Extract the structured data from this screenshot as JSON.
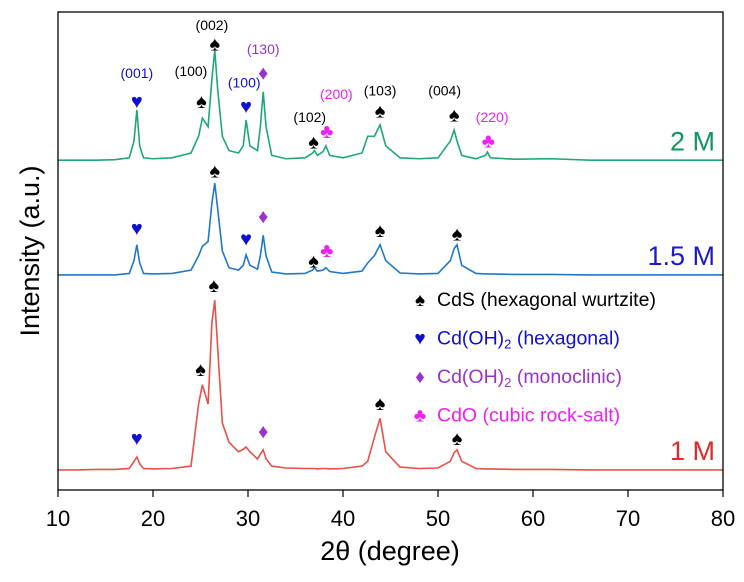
{
  "chart_data": {
    "type": "line",
    "xlabel": "2θ (degree)",
    "ylabel": "Intensity (a.u.)",
    "xlim": [
      10,
      80
    ],
    "xticks": [
      10,
      20,
      30,
      40,
      50,
      60,
      70,
      80
    ],
    "ylim": [
      0,
      100
    ],
    "x": [
      10,
      12,
      14,
      16,
      17.5,
      18,
      18.3,
      18.6,
      19,
      20,
      22,
      24,
      24.8,
      25.2,
      25.8,
      26.2,
      26.5,
      26.8,
      27.3,
      28,
      29,
      29.5,
      29.8,
      30.2,
      31,
      31.3,
      31.6,
      31.9,
      32.5,
      34,
      36,
      36.8,
      37,
      37.3,
      37.9,
      38.2,
      38.6,
      40,
      42,
      42.6,
      43.3,
      43.9,
      44.5,
      46,
      48,
      50,
      51.3,
      51.7,
      52,
      52.5,
      54,
      55,
      55.2,
      55.5,
      58,
      62,
      66,
      70,
      75,
      80
    ],
    "series": [
      {
        "name": "2 M",
        "color": "#1fa774",
        "label_color": "#13955f",
        "values": [
          69,
          69,
          69,
          69.1,
          69.5,
          73,
          79.5,
          72,
          69.5,
          69.3,
          69.5,
          70.5,
          74,
          77.8,
          76,
          86,
          92,
          84,
          74,
          71,
          70.5,
          72,
          77.4,
          72,
          71,
          76,
          83.3,
          76,
          70,
          69.3,
          69.5,
          70.5,
          71,
          70,
          70.8,
          72,
          70,
          69.5,
          70.5,
          74,
          74,
          76.4,
          72,
          69.5,
          69.3,
          69.5,
          73,
          75.3,
          73,
          70,
          69.3,
          70,
          70.7,
          69.5,
          69.2,
          69.3,
          69,
          69,
          69,
          69
        ]
      },
      {
        "name": "1.5 M",
        "color": "#1f78c8",
        "label_color": "#1a1acc",
        "values": [
          45,
          45,
          45,
          45,
          45.3,
          48,
          51.3,
          47.5,
          45.3,
          45.2,
          45.3,
          46,
          49,
          51,
          52,
          60,
          64.2,
          59,
          50,
          46.5,
          46,
          47,
          49.2,
          47,
          46.2,
          49,
          53.3,
          49,
          45.6,
          45.2,
          45.3,
          46,
          46.5,
          45.8,
          46,
          46.5,
          45.7,
          45.3,
          45.8,
          47.5,
          49,
          51.3,
          48,
          45.4,
          45.2,
          45.3,
          48,
          50.5,
          51.3,
          47,
          45.3,
          45.2,
          45.2,
          45.2,
          45.1,
          45.1,
          45,
          45,
          45,
          45
        ]
      },
      {
        "name": "1 M",
        "color": "#e8504a",
        "label_color": "#e02828",
        "values": [
          4.2,
          4.2,
          4.3,
          4.3,
          4.5,
          6,
          6.9,
          5.5,
          4.5,
          4.4,
          4.5,
          5,
          18,
          22,
          18,
          35,
          39.7,
          30,
          14,
          10,
          8,
          8.5,
          9,
          8,
          6.5,
          7.5,
          8.4,
          6.5,
          5,
          4.6,
          4.5,
          4.5,
          4.5,
          4.4,
          4.5,
          4.5,
          4.4,
          4.5,
          5,
          6,
          11,
          15,
          8,
          4.8,
          4.5,
          4.6,
          6,
          7.8,
          8.4,
          6,
          4.5,
          4.4,
          4.4,
          4.4,
          4.3,
          4.3,
          4.2,
          4.2,
          4.2,
          4.2
        ]
      }
    ],
    "annotations": [
      {
        "text": "♥",
        "x": 18.3,
        "y": 81,
        "color": "#1010d0"
      },
      {
        "text": "(001)",
        "x": 18.3,
        "y": 87,
        "color": "#1010d0"
      },
      {
        "text": "♠",
        "x": 25.1,
        "y": 81,
        "color": "#000000"
      },
      {
        "text": "(100)",
        "x": 24.0,
        "y": 87.4,
        "color": "#000000"
      },
      {
        "text": "♠",
        "x": 26.5,
        "y": 93,
        "color": "#000000"
      },
      {
        "text": "(002)",
        "x": 26.2,
        "y": 97,
        "color": "#000000"
      },
      {
        "text": "♥",
        "x": 29.8,
        "y": 80,
        "color": "#1010d0"
      },
      {
        "text": "(100)",
        "x": 29.6,
        "y": 85,
        "color": "#1010d0"
      },
      {
        "text": "♦",
        "x": 31.6,
        "y": 87,
        "color": "#9933cc"
      },
      {
        "text": "(130)",
        "x": 31.6,
        "y": 92,
        "color": "#9933cc"
      },
      {
        "text": "♠",
        "x": 36.9,
        "y": 72.6,
        "color": "#000000"
      },
      {
        "text": "(102)",
        "x": 36.5,
        "y": 77.8,
        "color": "#000000"
      },
      {
        "text": "♣",
        "x": 38.3,
        "y": 74.7,
        "color": "#ee22ee"
      },
      {
        "text": "(200)",
        "x": 39.3,
        "y": 82.6,
        "color": "#ee22ee"
      },
      {
        "text": "♠",
        "x": 43.9,
        "y": 79,
        "color": "#000000"
      },
      {
        "text": "(103)",
        "x": 43.9,
        "y": 83.3,
        "color": "#000000"
      },
      {
        "text": "♠",
        "x": 51.7,
        "y": 78.2,
        "color": "#000000"
      },
      {
        "text": "(004)",
        "x": 50.7,
        "y": 83.3,
        "color": "#000000"
      },
      {
        "text": "♣",
        "x": 55.3,
        "y": 72.8,
        "color": "#ee22ee"
      },
      {
        "text": "(220)",
        "x": 55.7,
        "y": 77.8,
        "color": "#ee22ee"
      },
      {
        "text": "♥",
        "x": 18.3,
        "y": 54.4,
        "color": "#1010d0"
      },
      {
        "text": "♠",
        "x": 26.5,
        "y": 66.5,
        "color": "#000000"
      },
      {
        "text": "♥",
        "x": 29.8,
        "y": 52.3,
        "color": "#1010d0"
      },
      {
        "text": "♦",
        "x": 31.6,
        "y": 57,
        "color": "#9933cc"
      },
      {
        "text": "♠",
        "x": 36.9,
        "y": 47.7,
        "color": "#000000"
      },
      {
        "text": "♣",
        "x": 38.3,
        "y": 49.8,
        "color": "#ee22ee"
      },
      {
        "text": "♠",
        "x": 43.9,
        "y": 54,
        "color": "#000000"
      },
      {
        "text": "♠",
        "x": 52,
        "y": 53.3,
        "color": "#000000"
      },
      {
        "text": "♥",
        "x": 18.3,
        "y": 10.5,
        "color": "#1010d0"
      },
      {
        "text": "♠",
        "x": 25,
        "y": 25,
        "color": "#000000"
      },
      {
        "text": "♠",
        "x": 26.4,
        "y": 42.5,
        "color": "#000000"
      },
      {
        "text": "♦",
        "x": 31.6,
        "y": 12,
        "color": "#9933cc"
      },
      {
        "text": "♠",
        "x": 43.9,
        "y": 17.8,
        "color": "#000000"
      },
      {
        "text": "♠",
        "x": 52,
        "y": 10.5,
        "color": "#000000"
      }
    ],
    "legend": [
      {
        "marker": "♠",
        "color": "#000000",
        "text": "CdS (hexagonal wurtzite)"
      },
      {
        "marker": "♥",
        "color": "#1010d0",
        "text": "Cd(OH)",
        "sub": "2",
        "rest": " (hexagonal)"
      },
      {
        "marker": "♦",
        "color": "#9933cc",
        "text": "Cd(OH)",
        "sub": "2",
        "rest": " (monoclinic)"
      },
      {
        "marker": "♣",
        "color": "#ee22ee",
        "text": "CdO (cubic rock-salt)"
      }
    ]
  }
}
